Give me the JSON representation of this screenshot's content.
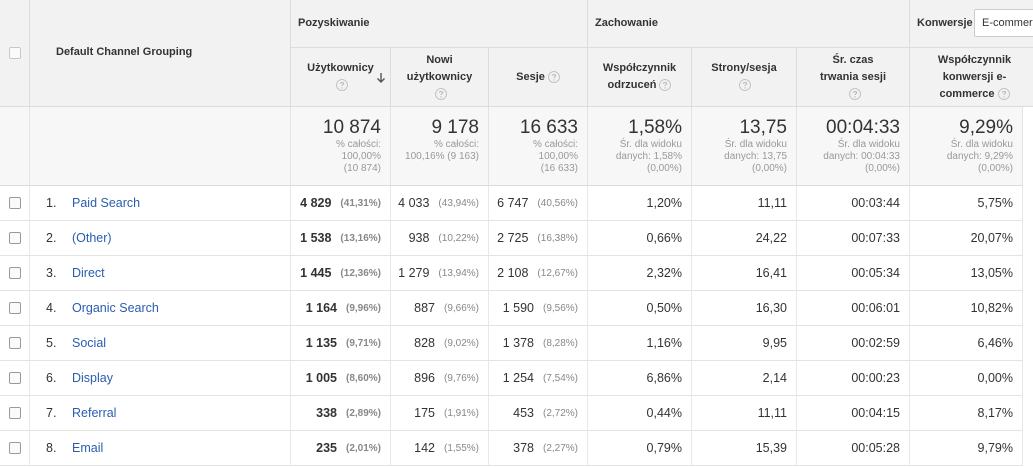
{
  "header": {
    "dimension": "Default Channel Grouping",
    "groups": [
      {
        "title": "Pozyskiwanie"
      },
      {
        "title": "Zachowanie"
      },
      {
        "title": "Konwersje",
        "selector": "E-commerce"
      }
    ],
    "columns": [
      "Użytkownicy",
      "Nowi użytkownicy",
      "Sesje",
      "Współczynnik odrzuceń",
      "Strony/sesja",
      "Śr. czas trwania sesji",
      "Współczynnik konwersji e-commerce"
    ]
  },
  "totals": [
    {
      "value": "10 874",
      "notes": [
        "% całości:",
        "100,00%",
        "(10 874)"
      ]
    },
    {
      "value": "9 178",
      "notes": [
        "% całości:",
        "100,16% (9 163)"
      ]
    },
    {
      "value": "16 633",
      "notes": [
        "% całości:",
        "100,00%",
        "(16 633)"
      ]
    },
    {
      "value": "1,58%",
      "notes": [
        "Śr. dla widoku",
        "danych: 1,58%",
        "(0,00%)"
      ]
    },
    {
      "value": "13,75",
      "notes": [
        "Śr. dla widoku",
        "danych: 13,75",
        "(0,00%)"
      ]
    },
    {
      "value": "00:04:33",
      "notes": [
        "Śr. dla widoku",
        "danych: 00:04:33",
        "(0,00%)"
      ]
    },
    {
      "value": "9,29%",
      "notes": [
        "Śr. dla widoku",
        "danych: 9,29%",
        "(0,00%)"
      ]
    }
  ],
  "rows": [
    {
      "index": "1.",
      "channel": "Paid Search",
      "cells": [
        {
          "value": "4 829",
          "share": "(41,31%)"
        },
        {
          "value": "4 033",
          "share": "(43,94%)"
        },
        {
          "value": "6 747",
          "share": "(40,56%)"
        },
        {
          "value": "1,20%"
        },
        {
          "value": "11,11"
        },
        {
          "value": "00:03:44"
        },
        {
          "value": "5,75%"
        }
      ]
    },
    {
      "index": "2.",
      "channel": "(Other)",
      "cells": [
        {
          "value": "1 538",
          "share": "(13,16%)"
        },
        {
          "value": "938",
          "share": "(10,22%)"
        },
        {
          "value": "2 725",
          "share": "(16,38%)"
        },
        {
          "value": "0,66%"
        },
        {
          "value": "24,22"
        },
        {
          "value": "00:07:33"
        },
        {
          "value": "20,07%"
        }
      ]
    },
    {
      "index": "3.",
      "channel": "Direct",
      "cells": [
        {
          "value": "1 445",
          "share": "(12,36%)"
        },
        {
          "value": "1 279",
          "share": "(13,94%)"
        },
        {
          "value": "2 108",
          "share": "(12,67%)"
        },
        {
          "value": "2,32%"
        },
        {
          "value": "16,41"
        },
        {
          "value": "00:05:34"
        },
        {
          "value": "13,05%"
        }
      ]
    },
    {
      "index": "4.",
      "channel": "Organic Search",
      "cells": [
        {
          "value": "1 164",
          "share": "(9,96%)"
        },
        {
          "value": "887",
          "share": "(9,66%)"
        },
        {
          "value": "1 590",
          "share": "(9,56%)"
        },
        {
          "value": "0,50%"
        },
        {
          "value": "16,30"
        },
        {
          "value": "00:06:01"
        },
        {
          "value": "10,82%"
        }
      ]
    },
    {
      "index": "5.",
      "channel": "Social",
      "cells": [
        {
          "value": "1 135",
          "share": "(9,71%)"
        },
        {
          "value": "828",
          "share": "(9,02%)"
        },
        {
          "value": "1 378",
          "share": "(8,28%)"
        },
        {
          "value": "1,16%"
        },
        {
          "value": "9,95"
        },
        {
          "value": "00:02:59"
        },
        {
          "value": "6,46%"
        }
      ]
    },
    {
      "index": "6.",
      "channel": "Display",
      "cells": [
        {
          "value": "1 005",
          "share": "(8,60%)"
        },
        {
          "value": "896",
          "share": "(9,76%)"
        },
        {
          "value": "1 254",
          "share": "(7,54%)"
        },
        {
          "value": "6,86%"
        },
        {
          "value": "2,14"
        },
        {
          "value": "00:00:23"
        },
        {
          "value": "0,00%"
        }
      ]
    },
    {
      "index": "7.",
      "channel": "Referral",
      "cells": [
        {
          "value": "338",
          "share": "(2,89%)"
        },
        {
          "value": "175",
          "share": "(1,91%)"
        },
        {
          "value": "453",
          "share": "(2,72%)"
        },
        {
          "value": "0,44%"
        },
        {
          "value": "11,11"
        },
        {
          "value": "00:04:15"
        },
        {
          "value": "8,17%"
        }
      ]
    },
    {
      "index": "8.",
      "channel": "Email",
      "cells": [
        {
          "value": "235",
          "share": "(2,01%)"
        },
        {
          "value": "142",
          "share": "(1,55%)"
        },
        {
          "value": "378",
          "share": "(2,27%)"
        },
        {
          "value": "0,79%"
        },
        {
          "value": "15,39"
        },
        {
          "value": "00:05:28"
        },
        {
          "value": "9,79%"
        }
      ]
    }
  ]
}
